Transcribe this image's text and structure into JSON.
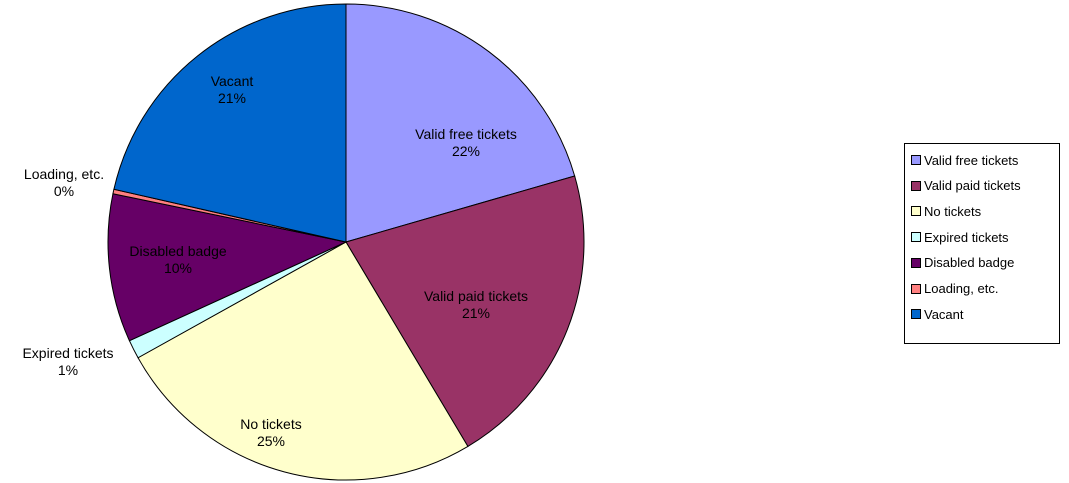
{
  "chart_data": {
    "type": "pie",
    "slices": [
      {
        "name": "Valid free tickets",
        "value": 22,
        "label": "22%",
        "color": "#9999FF"
      },
      {
        "name": "Valid paid tickets",
        "value": 21,
        "label": "21%",
        "color": "#993366"
      },
      {
        "name": "No tickets",
        "value": 25,
        "label": "25%",
        "color": "#FFFFCC"
      },
      {
        "name": "Expired tickets",
        "value": 1,
        "label": "1%",
        "color": "#CCFFFF"
      },
      {
        "name": "Disabled badge",
        "value": 10,
        "label": "10%",
        "color": "#660066"
      },
      {
        "name": "Loading, etc.",
        "value": 0,
        "label": "0%",
        "color": "#FF8080"
      },
      {
        "name": "Vacant",
        "value": 21,
        "label": "21%",
        "color": "#0066CC"
      }
    ],
    "legend_position": "right"
  }
}
